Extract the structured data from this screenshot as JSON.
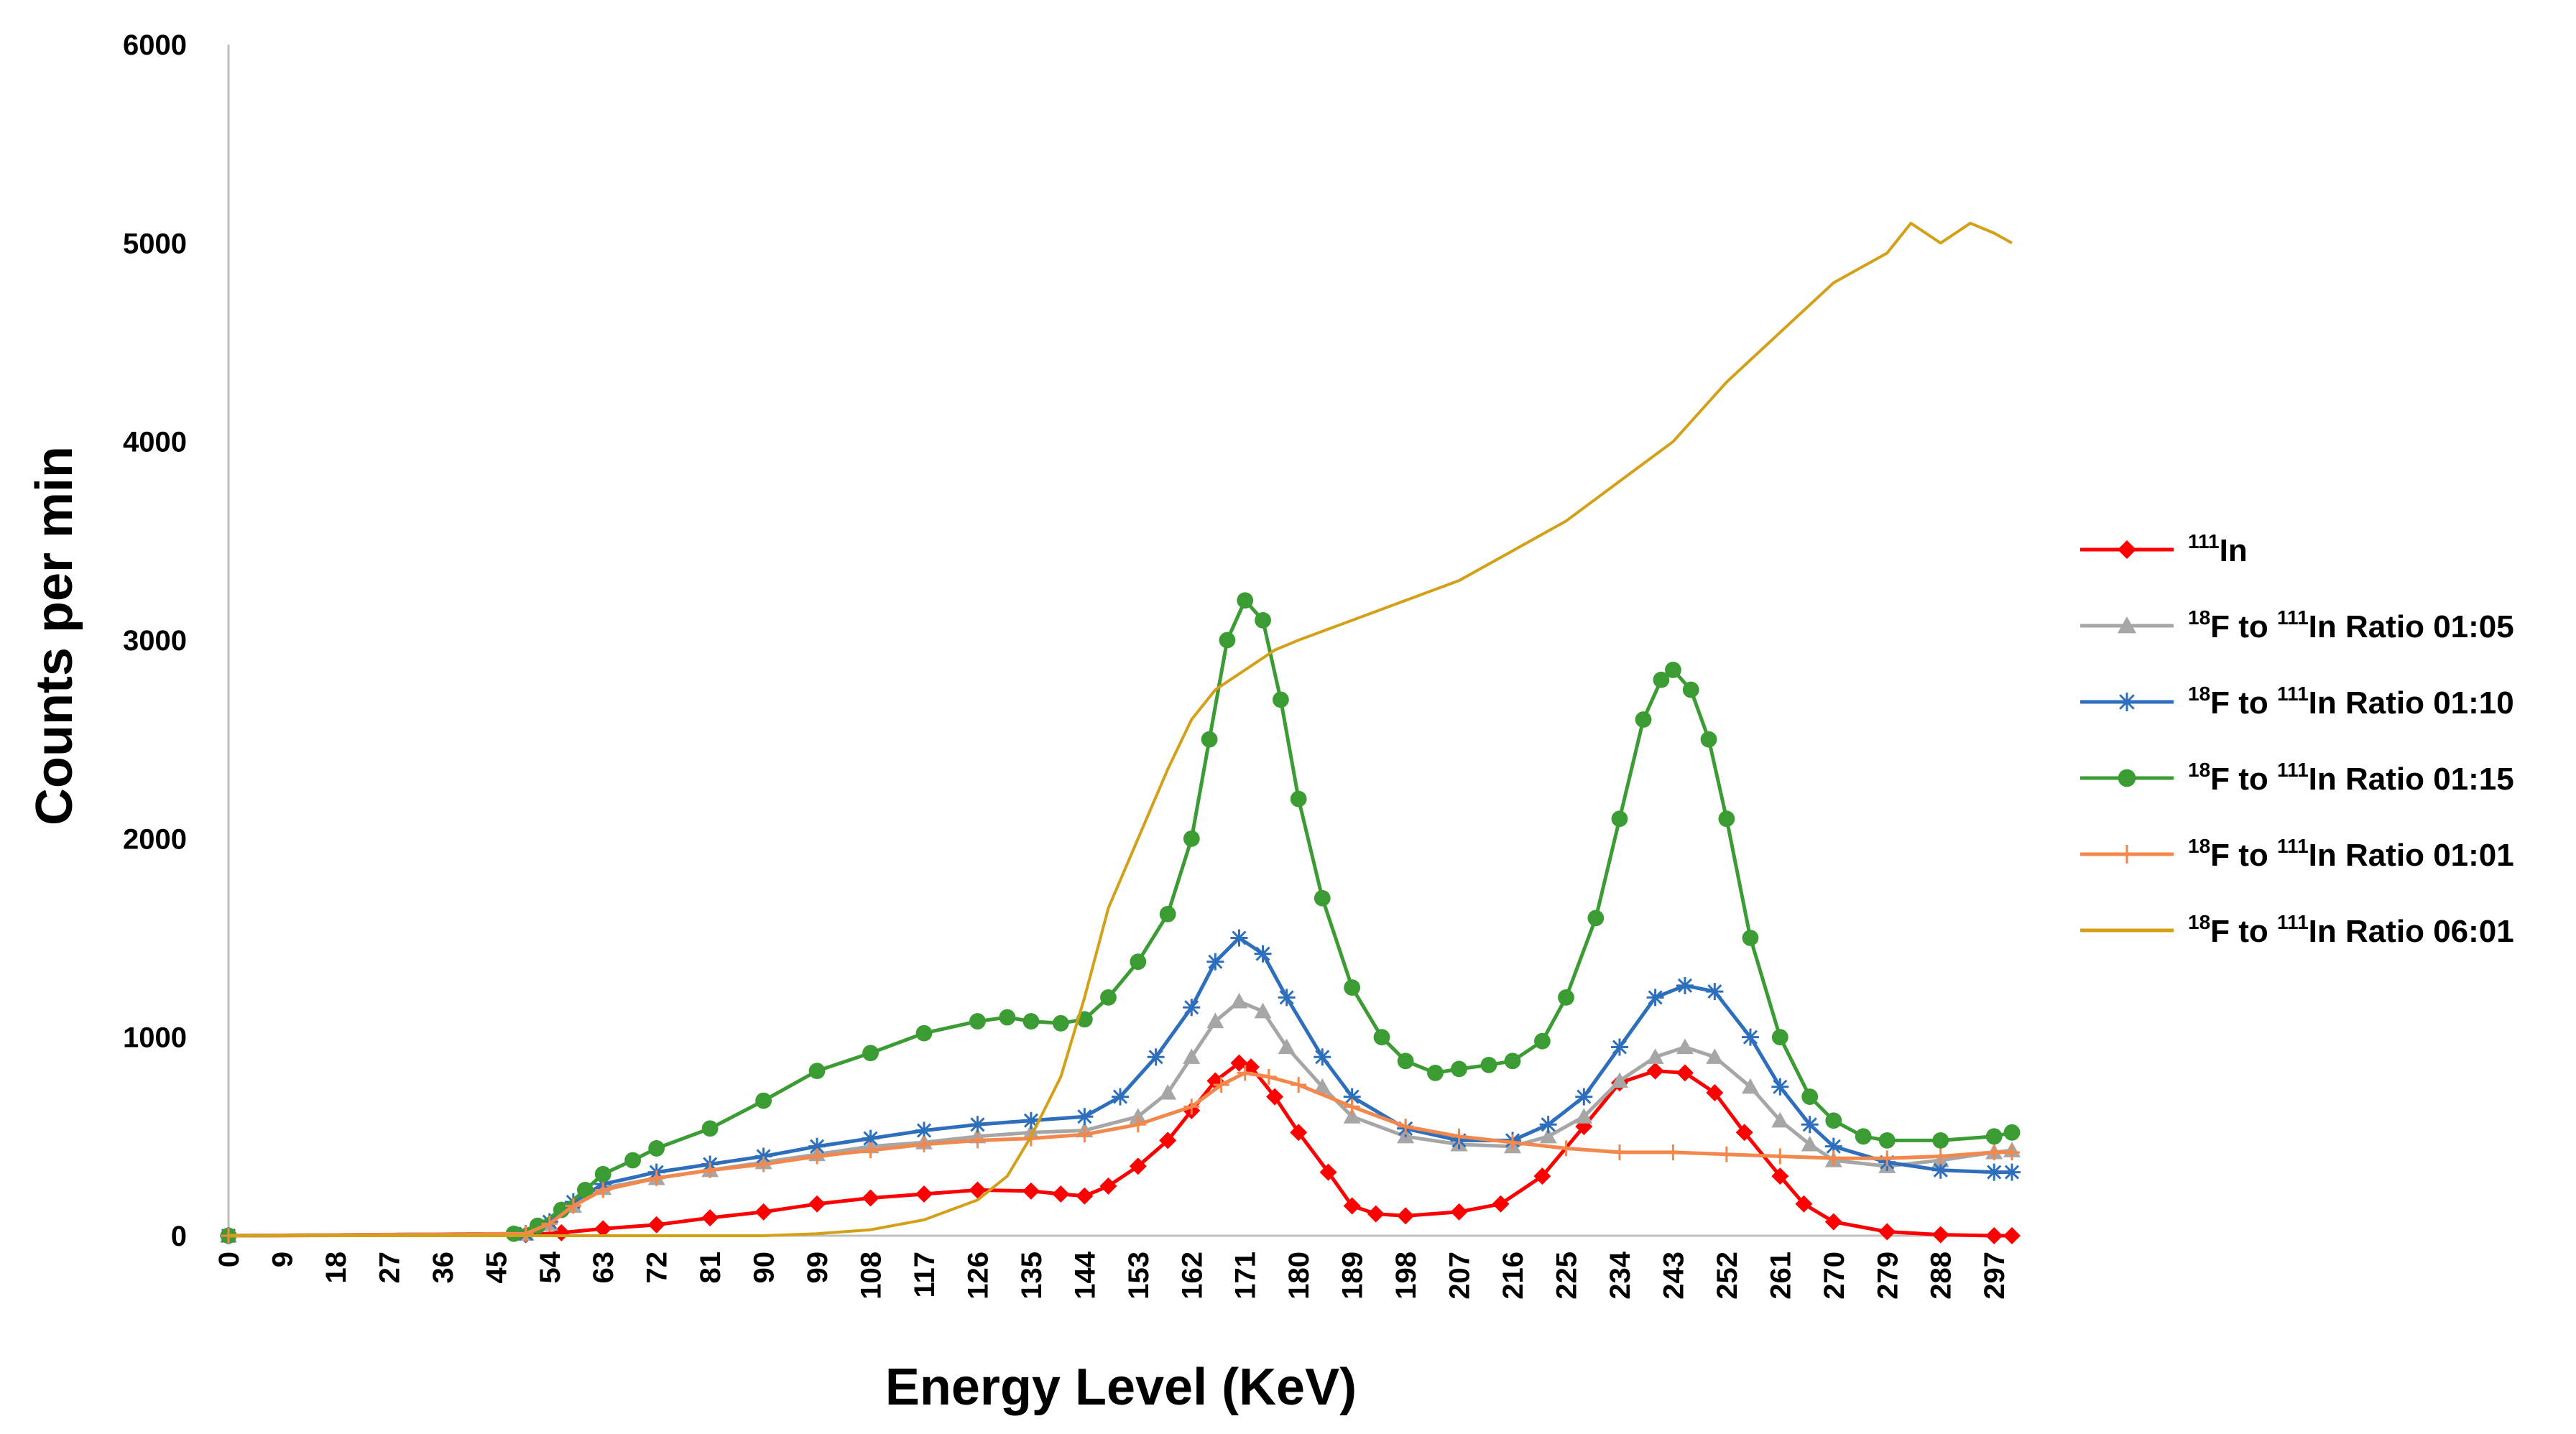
{
  "chart_data": {
    "type": "line",
    "title": "",
    "xlabel": "Energy Level (KeV)",
    "ylabel": "Counts per min",
    "xlim": [
      0,
      300
    ],
    "ylim": [
      0,
      6000
    ],
    "y_ticks": [
      0,
      1000,
      2000,
      3000,
      4000,
      5000,
      6000
    ],
    "x_ticks": [
      0,
      9,
      18,
      27,
      36,
      45,
      54,
      63,
      72,
      81,
      90,
      99,
      108,
      117,
      126,
      135,
      144,
      153,
      162,
      171,
      180,
      189,
      198,
      207,
      216,
      225,
      234,
      243,
      252,
      261,
      270,
      279,
      288,
      297
    ],
    "grid": false,
    "legend_position": "right",
    "series": [
      {
        "legend_prefix": "111",
        "legend_main": "In",
        "legend_suffix": "",
        "color": "#ff0000",
        "marker": "diamond",
        "x": [
          0,
          50,
          56,
          63,
          72,
          81,
          90,
          99,
          108,
          117,
          126,
          135,
          140,
          144,
          148,
          153,
          158,
          162,
          166,
          170,
          172,
          176,
          180,
          185,
          189,
          193,
          198,
          207,
          214,
          221,
          228,
          234,
          240,
          245,
          250,
          255,
          261,
          265,
          270,
          279,
          288,
          297,
          300
        ],
        "values": [
          0,
          5,
          15,
          35,
          55,
          90,
          120,
          160,
          190,
          210,
          230,
          225,
          210,
          200,
          250,
          350,
          480,
          630,
          780,
          870,
          850,
          700,
          520,
          320,
          150,
          110,
          100,
          120,
          160,
          300,
          550,
          770,
          830,
          820,
          720,
          520,
          300,
          160,
          70,
          20,
          5,
          0,
          0
        ]
      },
      {
        "legend_prefix": "18",
        "legend_main": "F to ",
        "legend_mid_sup": "111",
        "legend_suffix": "In Ratio 01:05",
        "color": "#a6a6a6",
        "marker": "triangle",
        "x": [
          0,
          50,
          54,
          58,
          63,
          72,
          81,
          90,
          99,
          108,
          117,
          126,
          135,
          144,
          153,
          158,
          162,
          166,
          170,
          174,
          178,
          184,
          189,
          198,
          207,
          216,
          222,
          228,
          234,
          240,
          245,
          250,
          256,
          261,
          266,
          270,
          279,
          288,
          297,
          300
        ],
        "values": [
          0,
          10,
          60,
          150,
          240,
          290,
          330,
          370,
          410,
          450,
          470,
          500,
          520,
          530,
          600,
          720,
          900,
          1080,
          1180,
          1130,
          950,
          750,
          600,
          500,
          460,
          450,
          500,
          600,
          780,
          900,
          950,
          900,
          750,
          580,
          460,
          380,
          350,
          380,
          420,
          430
        ]
      },
      {
        "legend_prefix": "18",
        "legend_main": "F to ",
        "legend_mid_sup": "111",
        "legend_suffix": "In Ratio 01:10",
        "color": "#2e6fbd",
        "marker": "star",
        "x": [
          0,
          50,
          54,
          58,
          63,
          72,
          81,
          90,
          99,
          108,
          117,
          126,
          135,
          144,
          150,
          156,
          162,
          166,
          170,
          174,
          178,
          184,
          189,
          198,
          207,
          216,
          222,
          228,
          234,
          240,
          245,
          250,
          256,
          261,
          266,
          270,
          279,
          288,
          297,
          300
        ],
        "values": [
          0,
          10,
          70,
          170,
          260,
          320,
          360,
          400,
          450,
          490,
          530,
          560,
          580,
          600,
          700,
          900,
          1150,
          1380,
          1500,
          1420,
          1200,
          900,
          700,
          540,
          480,
          480,
          560,
          700,
          950,
          1200,
          1260,
          1230,
          1000,
          750,
          560,
          450,
          370,
          330,
          320,
          320
        ]
      },
      {
        "legend_prefix": "18",
        "legend_main": "F to ",
        "legend_mid_sup": "111",
        "legend_suffix": "In Ratio 01:15",
        "color": "#3c9c34",
        "marker": "circle",
        "x": [
          0,
          48,
          52,
          56,
          60,
          63,
          68,
          72,
          81,
          90,
          99,
          108,
          117,
          126,
          131,
          135,
          140,
          144,
          148,
          153,
          158,
          162,
          165,
          168,
          171,
          174,
          177,
          180,
          184,
          189,
          194,
          198,
          203,
          207,
          212,
          216,
          221,
          225,
          230,
          234,
          238,
          241,
          243,
          246,
          249,
          252,
          256,
          261,
          266,
          270,
          275,
          279,
          288,
          297,
          300
        ],
        "values": [
          0,
          10,
          50,
          130,
          230,
          310,
          380,
          440,
          540,
          680,
          830,
          920,
          1020,
          1080,
          1100,
          1080,
          1070,
          1090,
          1200,
          1380,
          1620,
          2000,
          2500,
          3000,
          3200,
          3100,
          2700,
          2200,
          1700,
          1250,
          1000,
          880,
          820,
          840,
          860,
          880,
          980,
          1200,
          1600,
          2100,
          2600,
          2800,
          2850,
          2750,
          2500,
          2100,
          1500,
          1000,
          700,
          580,
          500,
          480,
          480,
          500,
          520
        ]
      },
      {
        "legend_prefix": "18",
        "legend_main": "F to ",
        "legend_mid_sup": "111",
        "legend_suffix": "In Ratio 01:01",
        "color": "#f4874b",
        "marker": "plus",
        "x": [
          0,
          50,
          54,
          58,
          63,
          72,
          81,
          90,
          99,
          108,
          117,
          126,
          135,
          144,
          153,
          162,
          167,
          171,
          175,
          180,
          189,
          198,
          207,
          216,
          225,
          234,
          243,
          252,
          261,
          270,
          279,
          288,
          297,
          300
        ],
        "values": [
          0,
          10,
          60,
          150,
          230,
          290,
          330,
          360,
          400,
          430,
          460,
          480,
          490,
          510,
          560,
          650,
          760,
          820,
          800,
          760,
          650,
          550,
          500,
          470,
          440,
          420,
          420,
          410,
          400,
          390,
          390,
          400,
          420,
          420
        ]
      },
      {
        "legend_prefix": "18",
        "legend_main": "F to ",
        "legend_mid_sup": "111",
        "legend_suffix": "In Ratio 06:01",
        "color": "#d4a017",
        "marker": "none",
        "x": [
          0,
          90,
          99,
          108,
          117,
          126,
          131,
          135,
          140,
          144,
          148,
          153,
          158,
          162,
          166,
          171,
          176,
          180,
          189,
          198,
          207,
          216,
          225,
          234,
          243,
          252,
          261,
          270,
          279,
          283,
          288,
          293,
          297,
          300
        ],
        "values": [
          0,
          0,
          10,
          30,
          80,
          180,
          300,
          500,
          800,
          1200,
          1650,
          2000,
          2350,
          2600,
          2750,
          2850,
          2950,
          3000,
          3100,
          3200,
          3300,
          3450,
          3600,
          3800,
          4000,
          4300,
          4550,
          4800,
          4950,
          5100,
          5000,
          5100,
          5050,
          5000
        ]
      }
    ]
  }
}
